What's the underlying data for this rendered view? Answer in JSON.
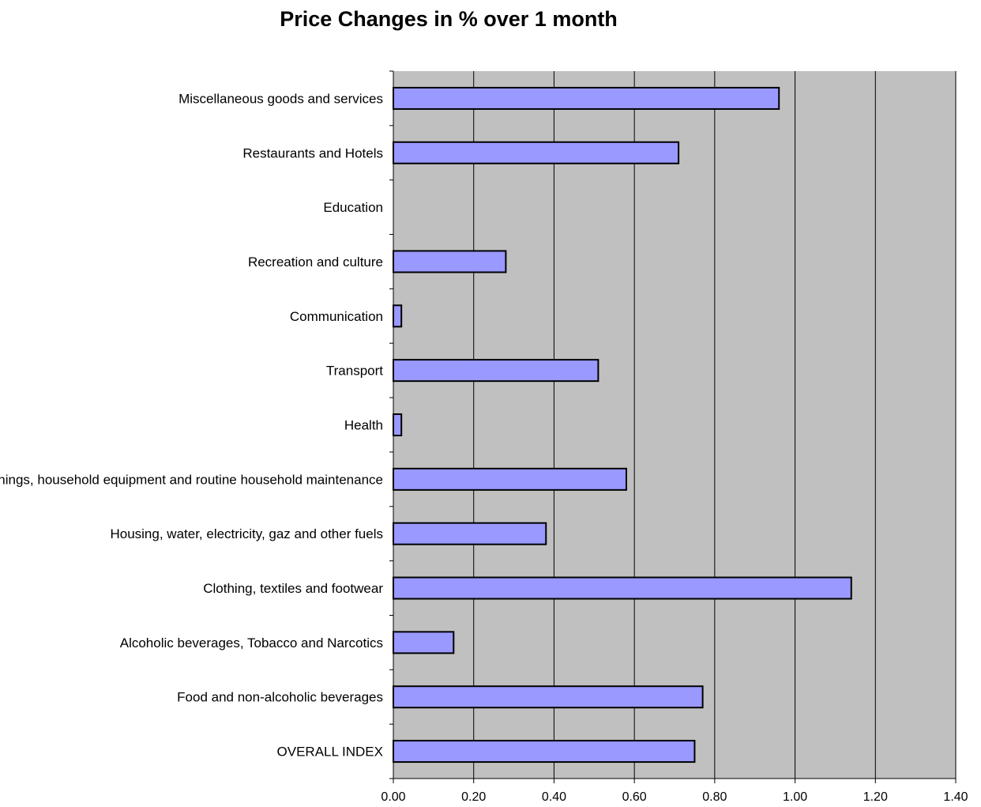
{
  "chart_data": {
    "type": "bar",
    "orientation": "horizontal",
    "title": "Price Changes in %  over 1 month",
    "xlabel": "",
    "ylabel": "",
    "xlim": [
      0,
      1.4
    ],
    "x_ticks": [
      "0.00",
      "0.20",
      "0.40",
      "0.60",
      "0.80",
      "1.00",
      "1.20",
      "1.40"
    ],
    "grid": "vertical",
    "legend": "none",
    "categories": [
      "Miscellaneous goods and services",
      "Restaurants and Hotels",
      "Education",
      "Recreation and culture",
      "Communication",
      "Transport",
      "Health",
      "Furnishings, household equipment and routine household maintenance",
      "Housing, water, electricity, gaz and other fuels",
      "Clothing, textiles and footwear",
      "Alcoholic beverages, Tobacco and Narcotics",
      "Food and non-alcoholic beverages",
      "OVERALL INDEX"
    ],
    "values": [
      0.96,
      0.71,
      0.0,
      0.28,
      0.02,
      0.51,
      0.02,
      0.58,
      0.38,
      1.14,
      0.15,
      0.77,
      0.75
    ],
    "colors": {
      "bar_fill": "#9999ff",
      "bar_stroke": "#000000",
      "plot_background": "#c0c0c0",
      "gridline": "#000000"
    }
  }
}
